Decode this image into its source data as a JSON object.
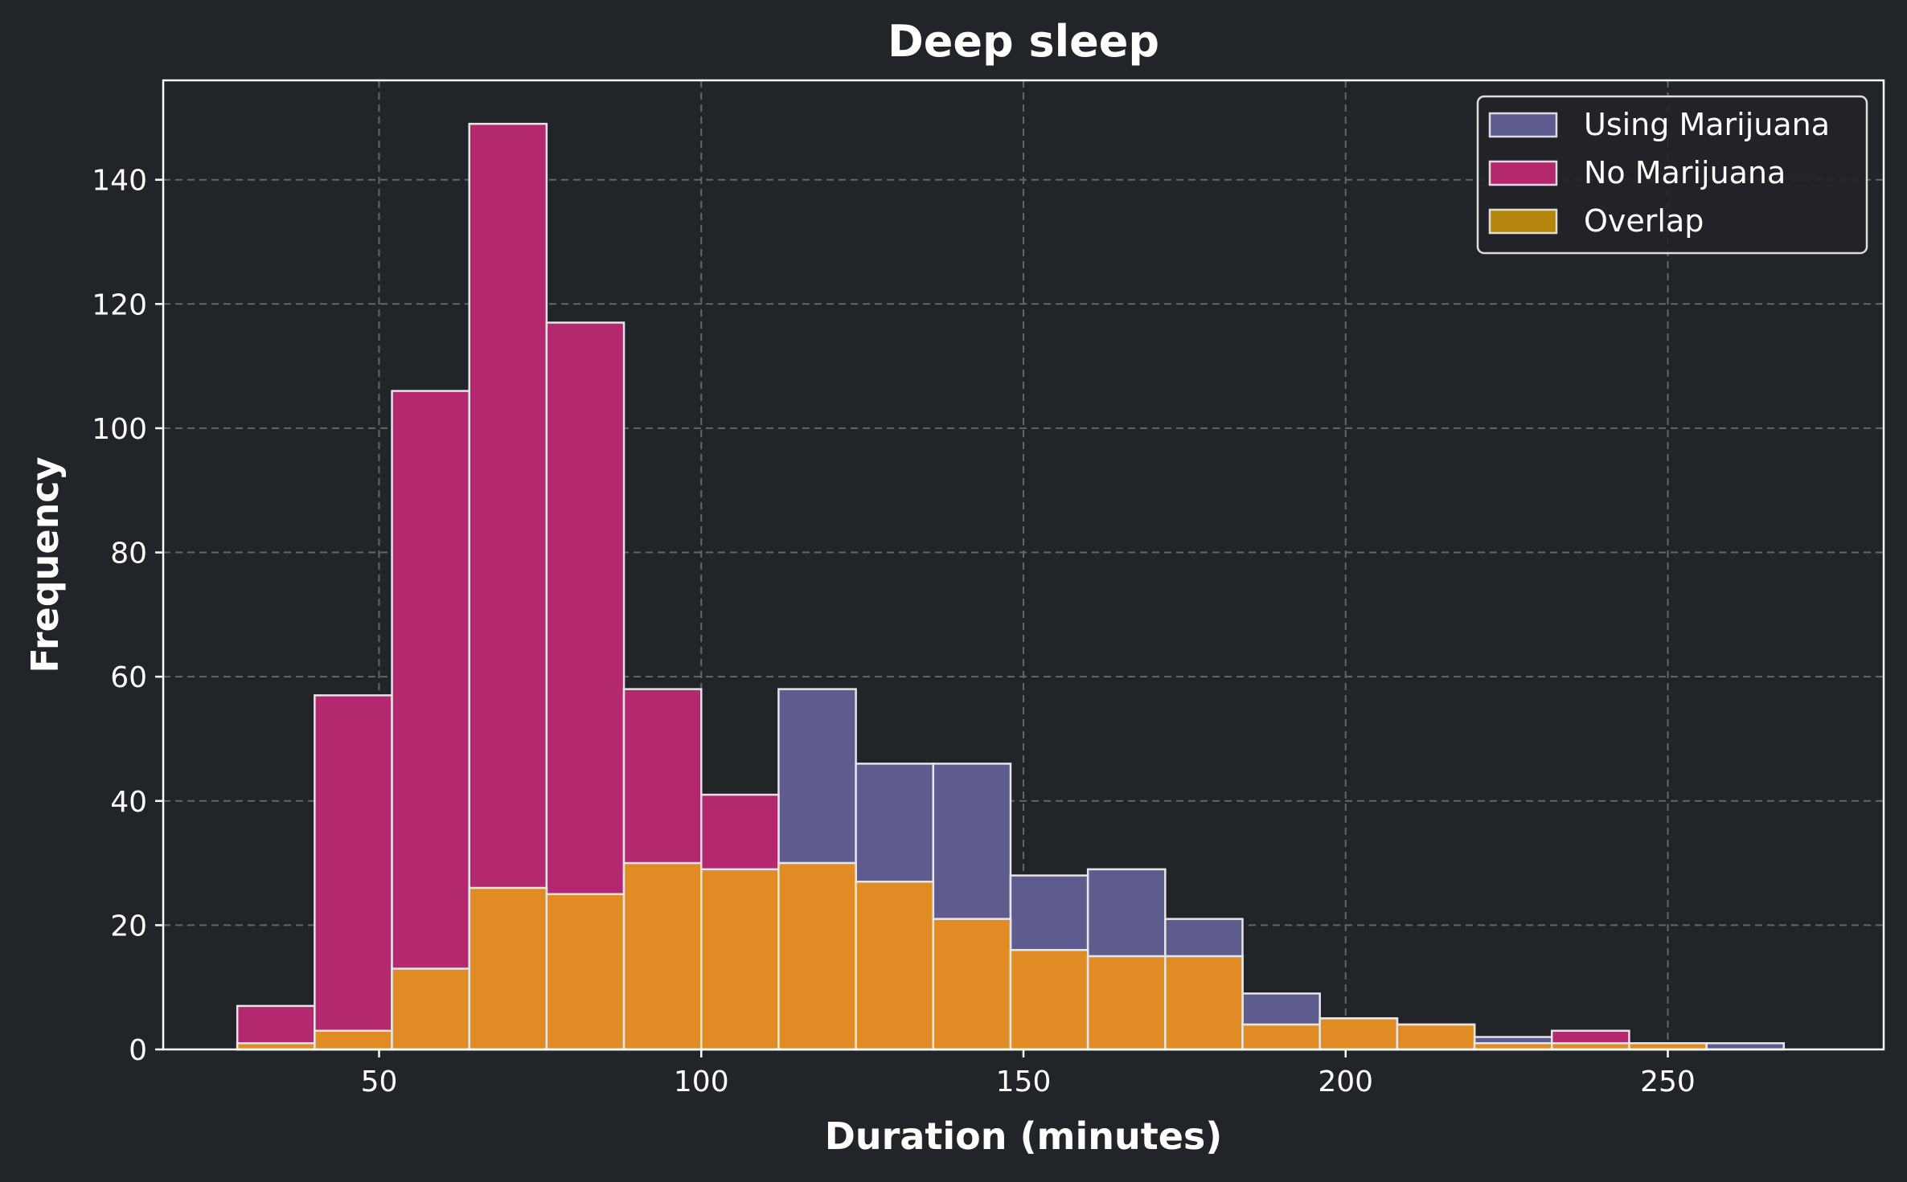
{
  "chart_data": {
    "type": "bar",
    "title": "Deep sleep",
    "xlabel": "Duration (minutes)",
    "ylabel": "Frequency",
    "xlim": [
      16.5,
      283.5
    ],
    "ylim": [
      0,
      156
    ],
    "xticks": [
      50,
      100,
      150,
      200,
      250
    ],
    "yticks": [
      0,
      20,
      40,
      60,
      80,
      100,
      120,
      140
    ],
    "grid": true,
    "legend_position": "top-right",
    "bins": [
      [
        28.0,
        40.0
      ],
      [
        40.0,
        52.0
      ],
      [
        52.0,
        64.0
      ],
      [
        64.0,
        76.0
      ],
      [
        76.0,
        88.0
      ],
      [
        88.0,
        100.0
      ],
      [
        100.0,
        112.0
      ],
      [
        112.0,
        124.0
      ],
      [
        124.0,
        136.0
      ],
      [
        136.0,
        148.0
      ],
      [
        148.0,
        160.0
      ],
      [
        160.0,
        172.0
      ],
      [
        172.0,
        184.0
      ],
      [
        184.0,
        196.0
      ],
      [
        196.0,
        208.0
      ],
      [
        208.0,
        220.0
      ],
      [
        220.0,
        232.0
      ],
      [
        232.0,
        244.0
      ],
      [
        244.0,
        256.0
      ],
      [
        256.0,
        268.0
      ]
    ],
    "series": [
      {
        "name": "Using Marijuana",
        "color": "#5e5c8e",
        "values": [
          1,
          3,
          13,
          26,
          25,
          30,
          29,
          58,
          46,
          46,
          28,
          29,
          21,
          9,
          5,
          4,
          2,
          1,
          1,
          1
        ]
      },
      {
        "name": "No Marijuana",
        "color": "#b3286f",
        "values": [
          7,
          57,
          106,
          149,
          117,
          58,
          41,
          30,
          27,
          21,
          16,
          15,
          15,
          4,
          5,
          4,
          1,
          3,
          1,
          0
        ]
      },
      {
        "name": "Overlap",
        "color": "#e08b24",
        "legend_color": "#b5870f",
        "values": [
          1,
          3,
          13,
          26,
          25,
          30,
          29,
          30,
          27,
          21,
          16,
          15,
          15,
          4,
          5,
          4,
          1,
          1,
          1,
          0
        ]
      }
    ],
    "colors": {
      "background": "#212428",
      "axes_edge": "#ffffff",
      "grid": "#666666",
      "bar_edge": "#e6e6e6"
    }
  }
}
